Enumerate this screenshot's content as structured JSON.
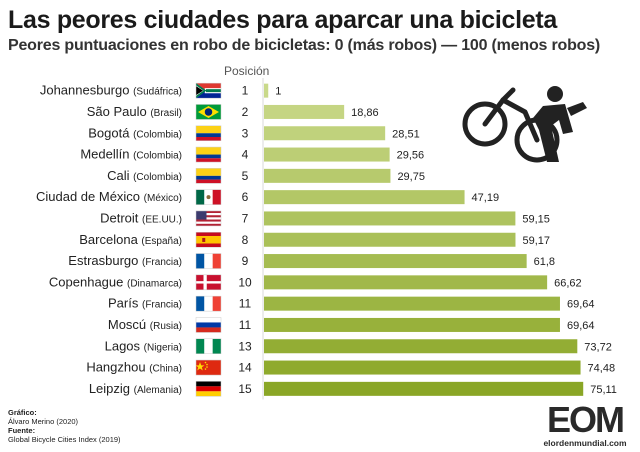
{
  "header": {
    "title": "Las peores ciudades para aparcar una bicicleta",
    "subtitle": "Peores puntuaciones en robo de bicicletas: 0 (más robos) — 100 (menos robos)",
    "position_label": "Posición"
  },
  "chart_data": {
    "type": "bar",
    "orientation": "horizontal",
    "xlim": [
      0,
      100
    ],
    "bar_color_start": "#c9d98a",
    "bar_color_end": "#8aa626",
    "categories": [
      {
        "city": "Johannesburgo",
        "country": "(Sudáfrica)",
        "flag": "za",
        "position": "1",
        "value": 1,
        "label": "1"
      },
      {
        "city": "São Paulo",
        "country": "(Brasil)",
        "flag": "br",
        "position": "2",
        "value": 18.86,
        "label": "18,86"
      },
      {
        "city": "Bogotá",
        "country": "(Colombia)",
        "flag": "co",
        "position": "3",
        "value": 28.51,
        "label": "28,51"
      },
      {
        "city": "Medellín",
        "country": "(Colombia)",
        "flag": "co",
        "position": "4",
        "value": 29.56,
        "label": "29,56"
      },
      {
        "city": "Cali",
        "country": "(Colombia)",
        "flag": "co",
        "position": "5",
        "value": 29.75,
        "label": "29,75"
      },
      {
        "city": "Ciudad de México",
        "country": "(México)",
        "flag": "mx",
        "position": "6",
        "value": 47.19,
        "label": "47,19"
      },
      {
        "city": "Detroit",
        "country": "(EE.UU.)",
        "flag": "us",
        "position": "7",
        "value": 59.15,
        "label": "59,15"
      },
      {
        "city": "Barcelona",
        "country": "(España)",
        "flag": "es",
        "position": "8",
        "value": 59.17,
        "label": "59,17"
      },
      {
        "city": "Estrasburgo",
        "country": "(Francia)",
        "flag": "fr",
        "position": "9",
        "value": 61.8,
        "label": "61,8"
      },
      {
        "city": "Copenhague",
        "country": "(Dinamarca)",
        "flag": "dk",
        "position": "10",
        "value": 66.62,
        "label": "66,62"
      },
      {
        "city": "París",
        "country": "(Francia)",
        "flag": "fr",
        "position": "11",
        "value": 69.64,
        "label": "69,64"
      },
      {
        "city": "Moscú",
        "country": "(Rusia)",
        "flag": "ru",
        "position": "11",
        "value": 69.64,
        "label": "69,64"
      },
      {
        "city": "Lagos",
        "country": "(Nigeria)",
        "flag": "ng",
        "position": "13",
        "value": 73.72,
        "label": "73,72"
      },
      {
        "city": "Hangzhou",
        "country": "(China)",
        "flag": "cn",
        "position": "14",
        "value": 74.48,
        "label": "74,48"
      },
      {
        "city": "Leipzig",
        "country": "(Alemania)",
        "flag": "de",
        "position": "15",
        "value": 75.11,
        "label": "75,11"
      }
    ]
  },
  "footer": {
    "grafico_label": "Gráfico:",
    "grafico_value": "Álvaro Merino (2020)",
    "fuente_label": "Fuente:",
    "fuente_value": "Global Bicycle Cities Index (2019)"
  },
  "logo": {
    "text": "EOM",
    "site": "elordenmundial.com"
  },
  "icons": {
    "thief": "bike-thief-icon"
  }
}
